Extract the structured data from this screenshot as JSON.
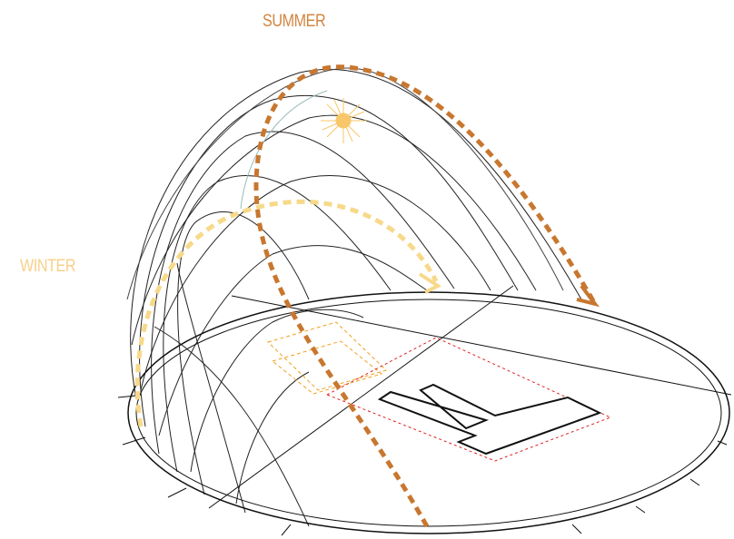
{
  "labels": {
    "summer": "SUMMER",
    "winter": "WINTER"
  }
}
